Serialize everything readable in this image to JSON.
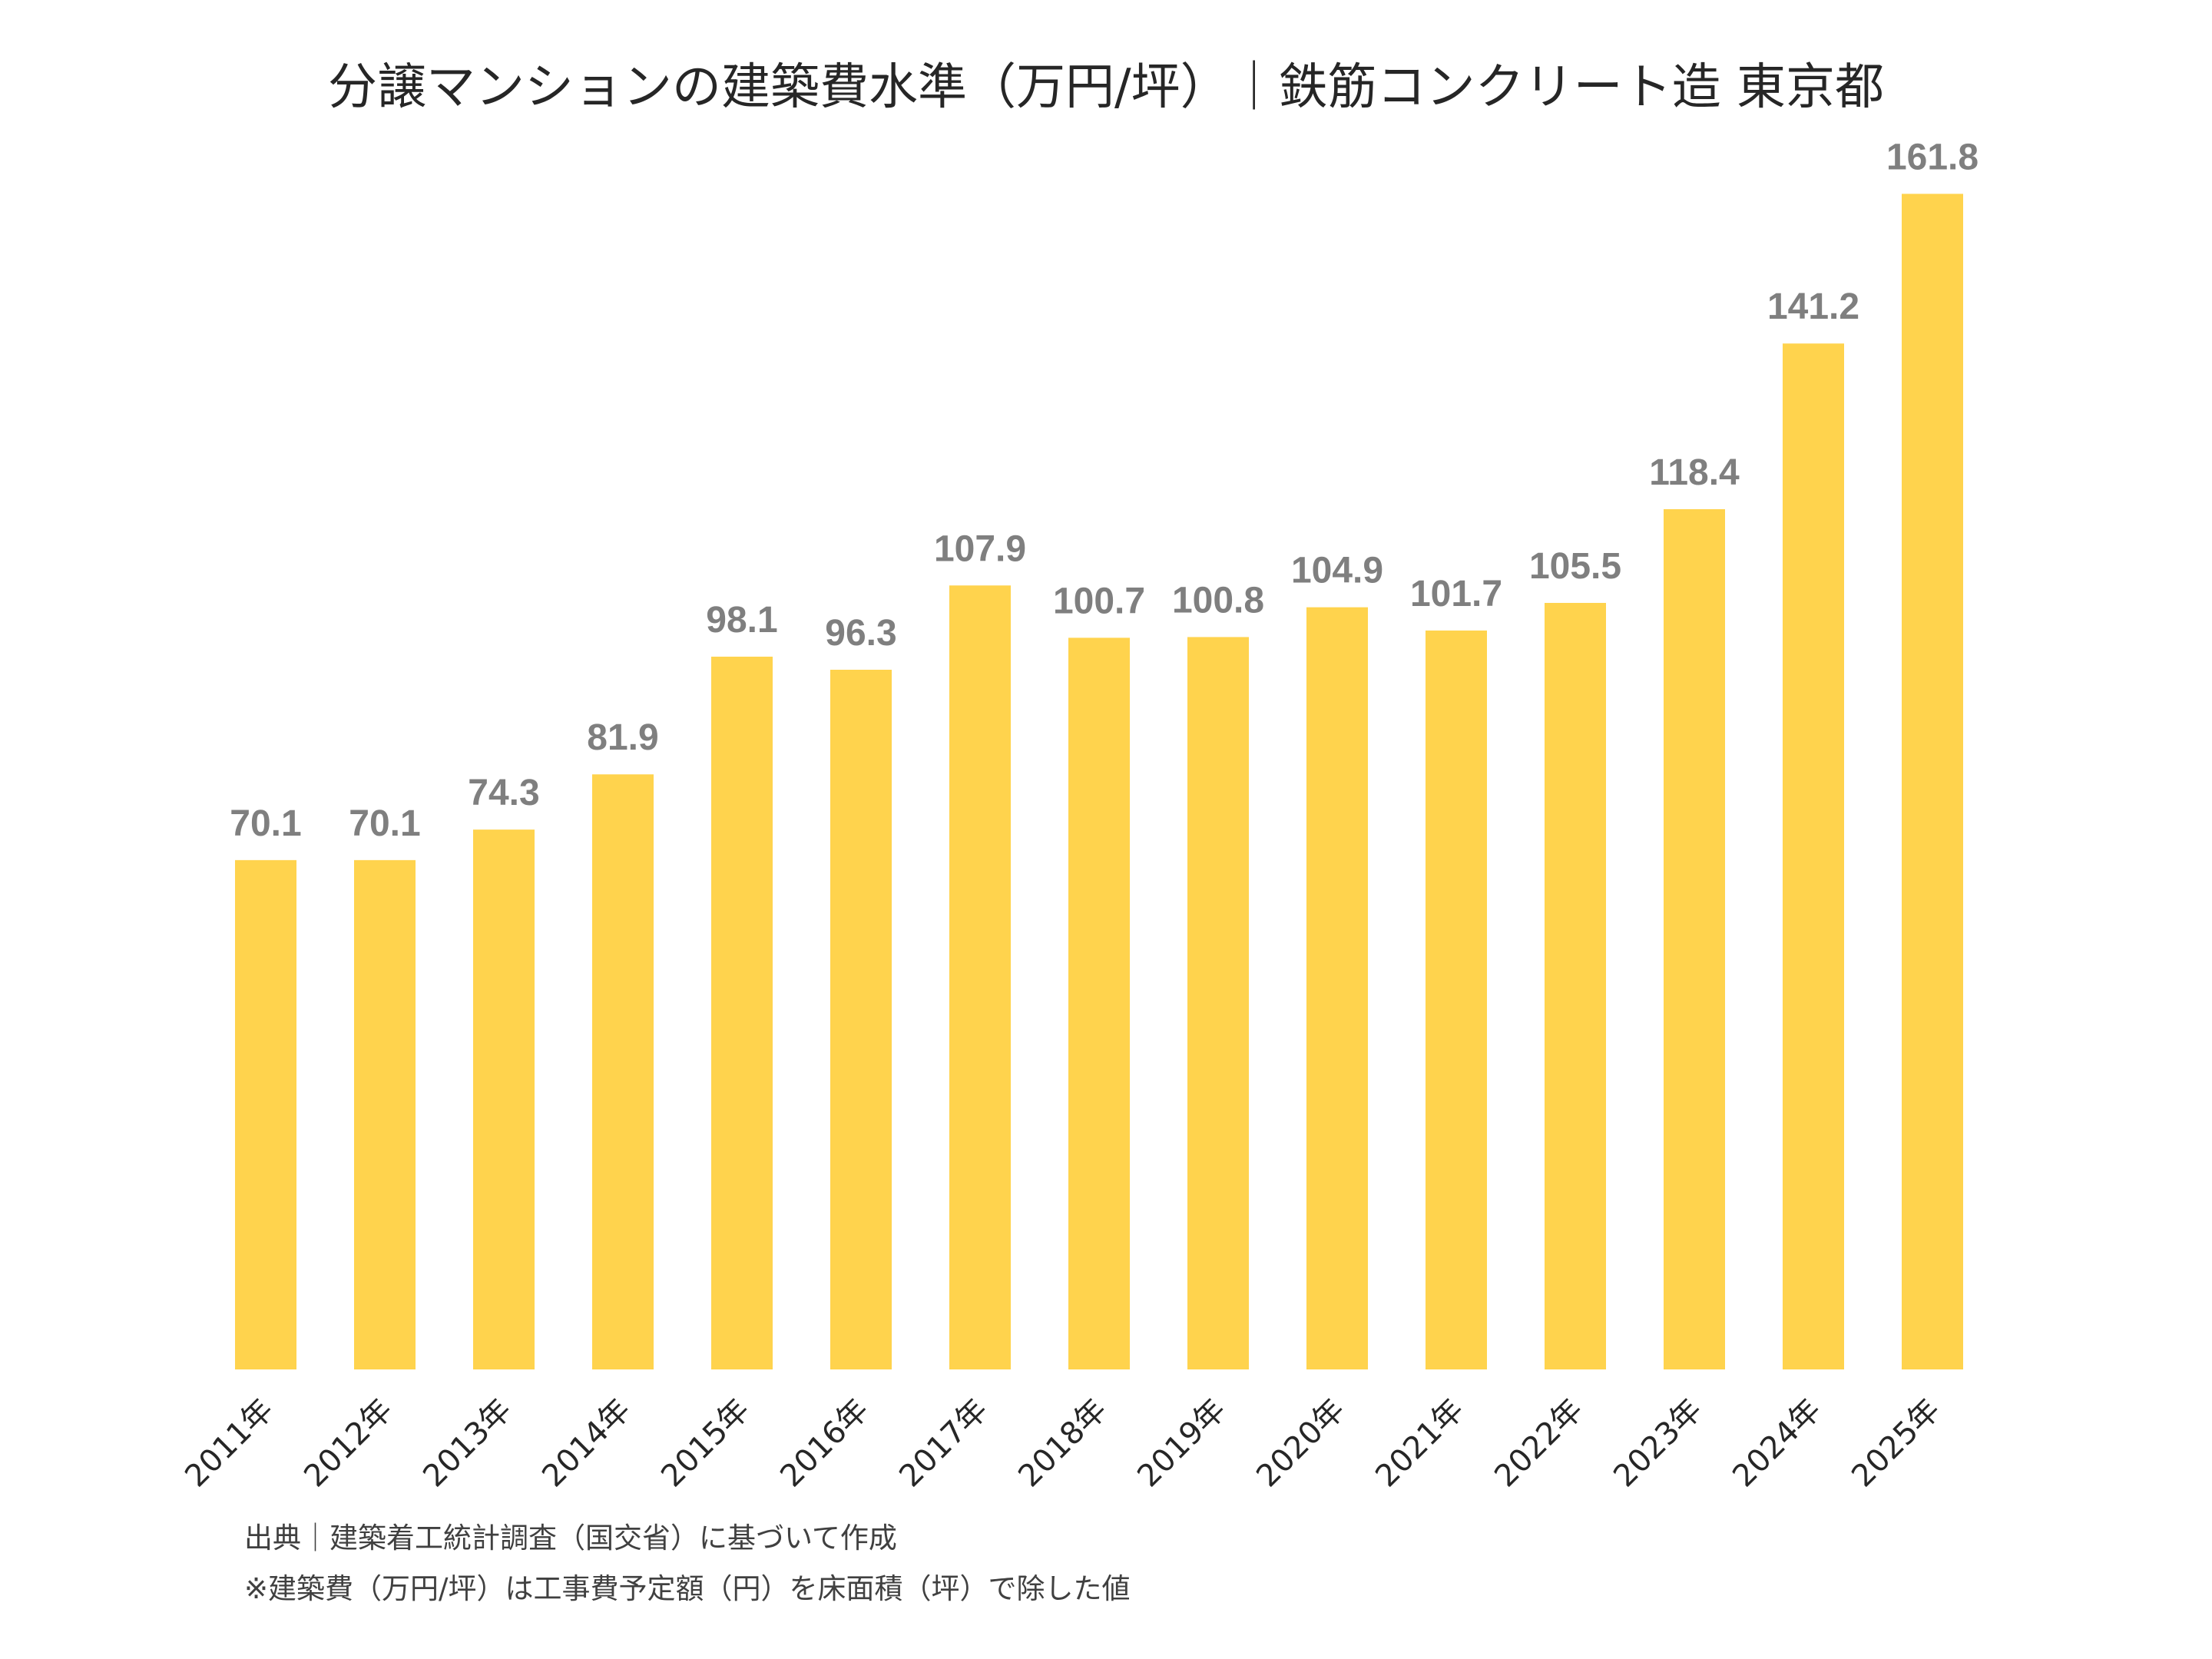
{
  "chart_data": {
    "type": "bar",
    "title": "分譲マンションの建築費水準（万円/坪）｜鉄筋コンクリート造 東京都",
    "categories": [
      "2011年",
      "2012年",
      "2013年",
      "2014年",
      "2015年",
      "2016年",
      "2017年",
      "2018年",
      "2019年",
      "2020年",
      "2021年",
      "2022年",
      "2023年",
      "2024年",
      "2025年"
    ],
    "values": [
      70.1,
      70.1,
      74.3,
      81.9,
      98.1,
      96.3,
      107.9,
      100.7,
      100.8,
      104.9,
      101.7,
      105.5,
      118.4,
      141.2,
      161.8
    ],
    "data_labels": [
      "70.1",
      "70.1",
      "74.3",
      "81.9",
      "98.1",
      "96.3",
      "107.9",
      "100.7",
      "100.8",
      "104.9",
      "101.7",
      "105.5",
      "118.4",
      "141.2",
      "161.8"
    ],
    "xlabel": "",
    "ylabel": "",
    "ylim": [
      0,
      170
    ],
    "grid": false,
    "y_axis_visible": false,
    "bar_color": "#FFD34D",
    "label_color": "#7F7F7F"
  },
  "footnotes": {
    "source": "出典｜建築着工統計調査（国交省）に基づいて作成",
    "note": "※建築費（万円/坪）は工事費予定額（円）を床面積（坪）で除した値"
  }
}
